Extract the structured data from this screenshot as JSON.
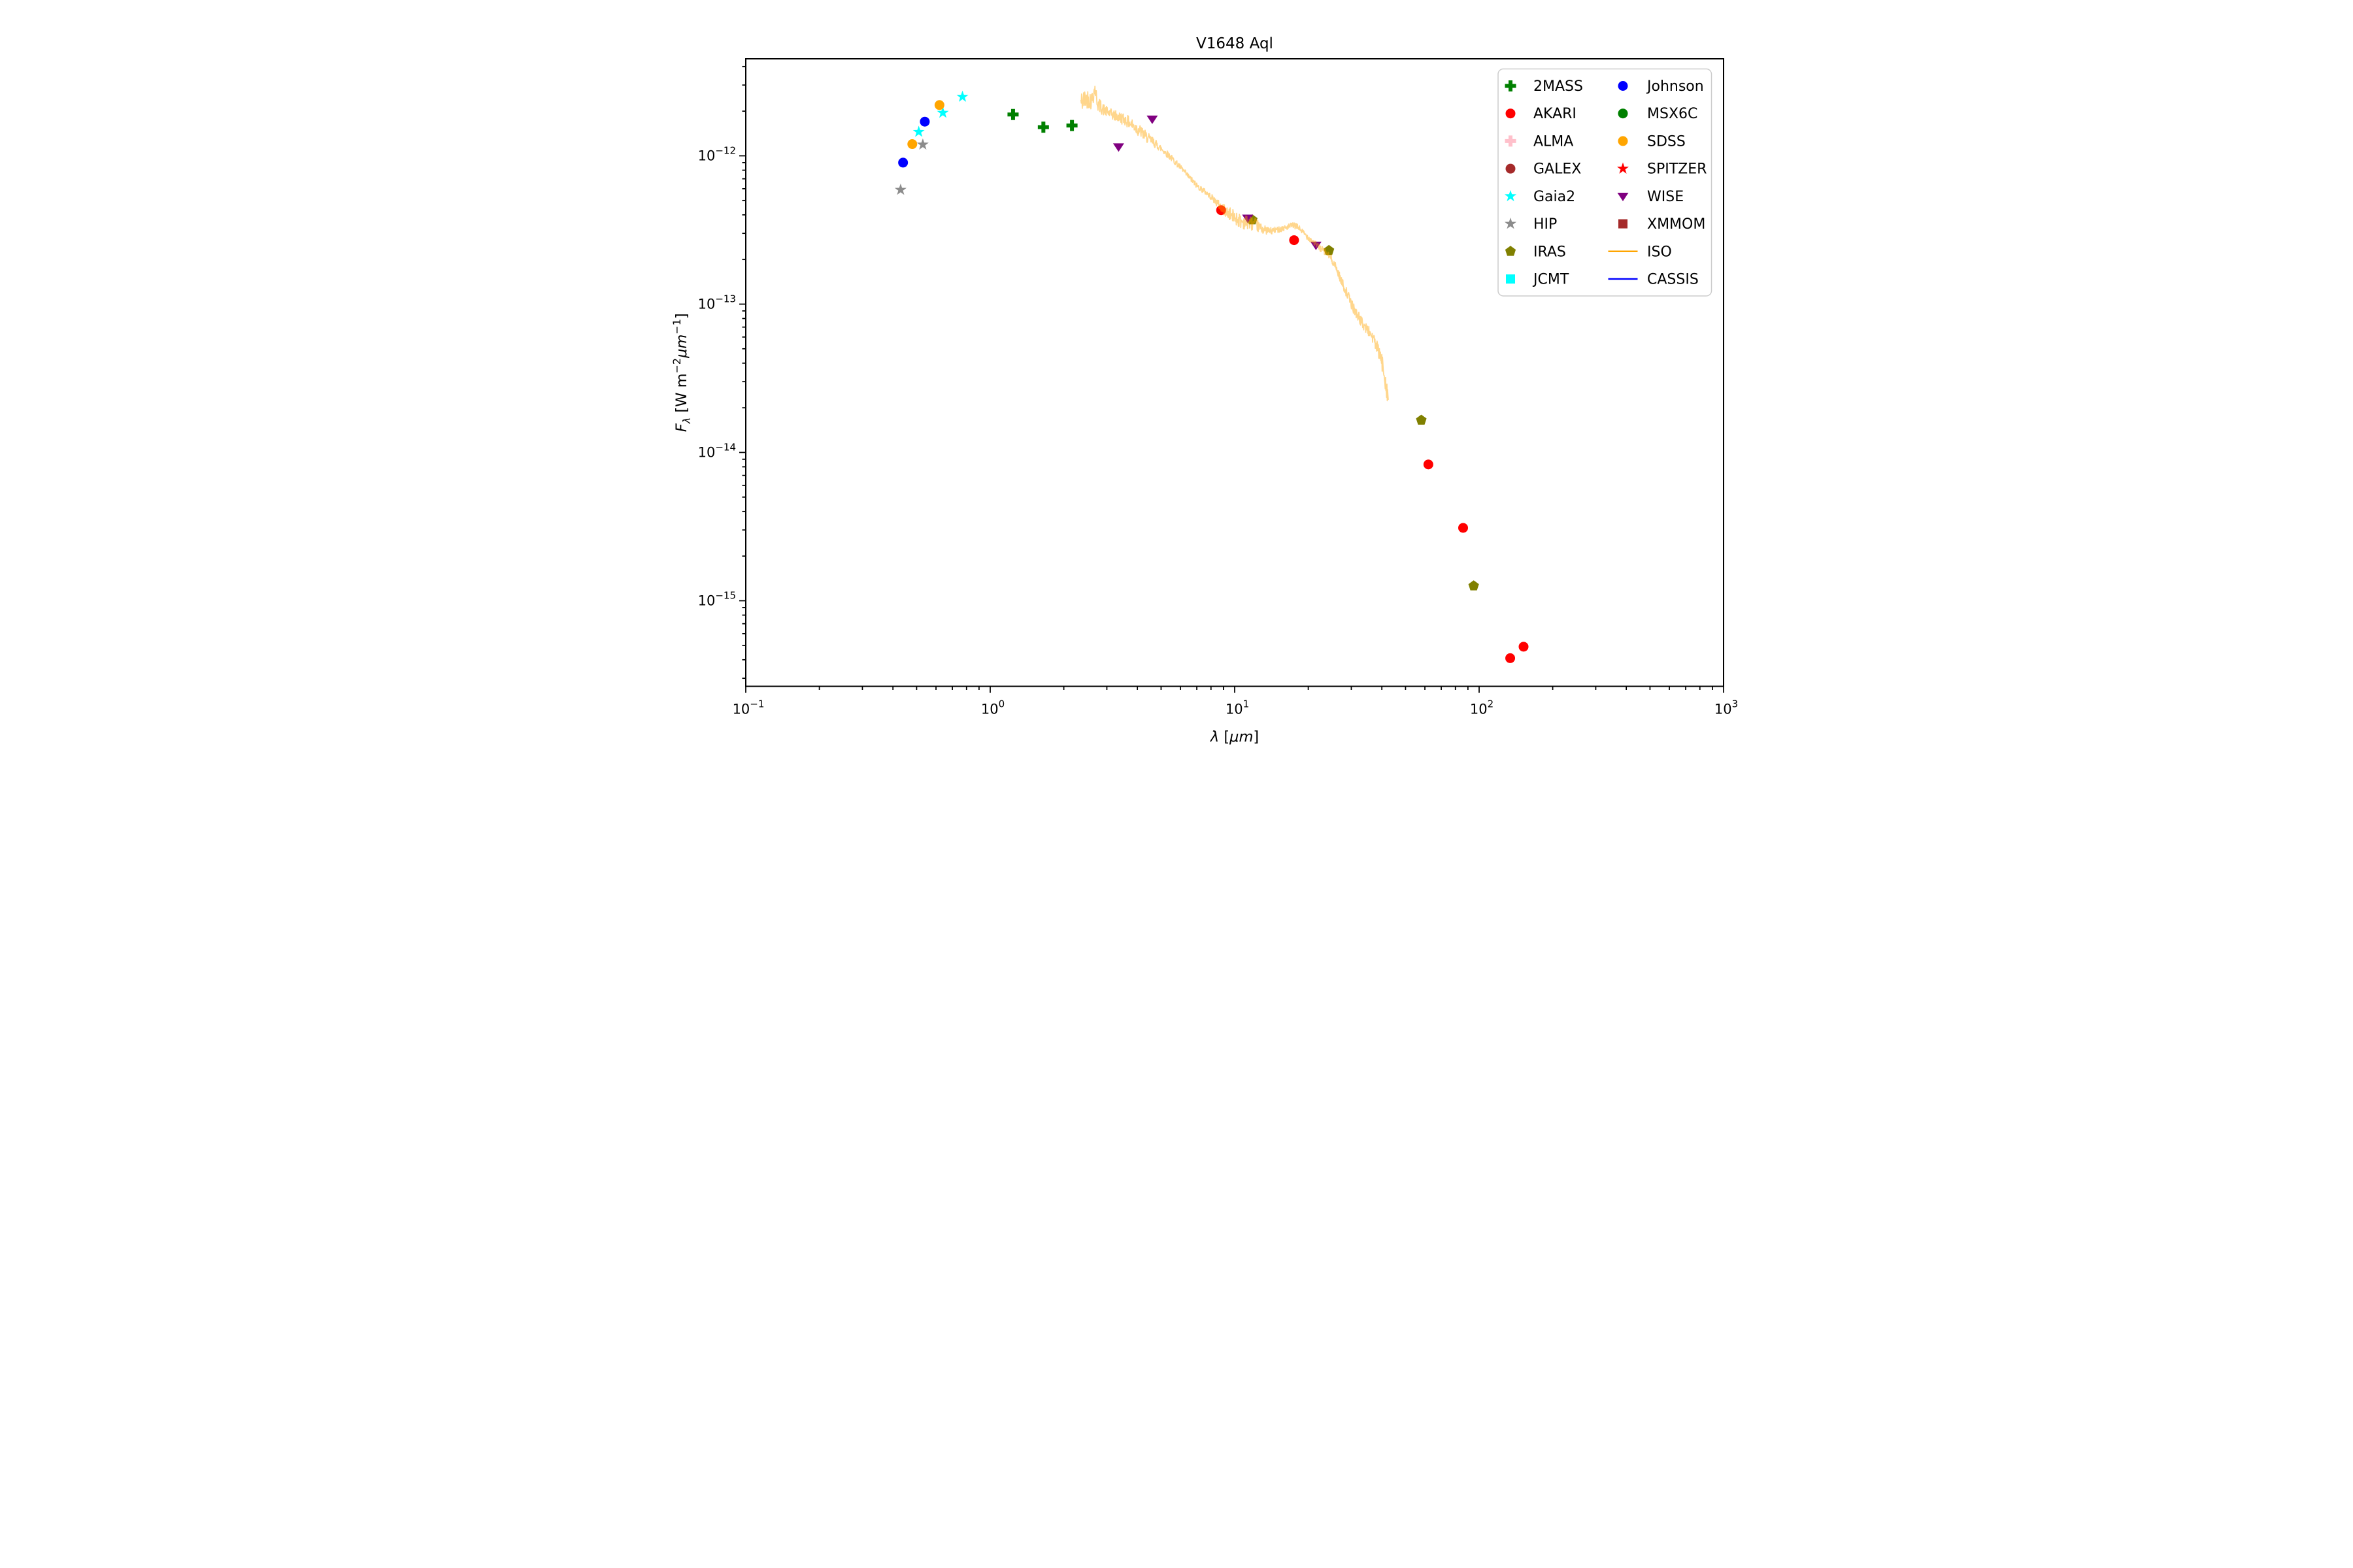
{
  "figure": {
    "title": "V1648 Aql",
    "xlabel": "λ [μm]",
    "ylabel": "Fλ [W m−2 μm−1]"
  },
  "chart_data": {
    "type": "scatter",
    "title": "V1648 Aql",
    "xlabel": "λ [μm]",
    "ylabel": "F_λ [W m^-2 μm^-1]",
    "x_scale": "log",
    "y_scale": "log",
    "xlim": [
      0.1,
      1000
    ],
    "ylim": [
      2.65e-16,
      4.5e-12
    ],
    "x_tick_exponents": [
      -1,
      0,
      1,
      2,
      3
    ],
    "x_tick_labels": [
      "10⁻¹",
      "10⁰",
      "10¹",
      "10²",
      "10³"
    ],
    "y_tick_exponents": [
      -12,
      -13,
      -14,
      -15
    ],
    "y_tick_labels": [
      "10⁻¹²",
      "10⁻¹³",
      "10⁻¹⁴",
      "10⁻¹⁵"
    ],
    "grid": false,
    "legend_position": "upper right",
    "legend_columns": 2,
    "series": [
      {
        "name": "2MASS",
        "marker": "plus",
        "color": "#008000",
        "points": [
          [
            1.24,
            1.9e-12
          ],
          [
            1.65,
            1.56e-12
          ],
          [
            2.16,
            1.6e-12
          ]
        ]
      },
      {
        "name": "AKARI",
        "marker": "circle",
        "color": "#FF0000",
        "points": [
          [
            8.8,
            4.3e-13
          ],
          [
            17.5,
            2.7e-13
          ],
          [
            62,
            8.3e-15
          ],
          [
            86,
            3.1e-15
          ],
          [
            134,
            4.1e-16
          ],
          [
            152,
            4.9e-16
          ]
        ]
      },
      {
        "name": "ALMA",
        "marker": "plus",
        "color": "#FFC0CB",
        "points": []
      },
      {
        "name": "GALEX",
        "marker": "circle",
        "color": "#A52A2A",
        "points": []
      },
      {
        "name": "Gaia2",
        "marker": "star",
        "color": "#00FFFF",
        "points": [
          [
            0.51,
            1.45e-12
          ],
          [
            0.64,
            1.95e-12
          ],
          [
            0.77,
            2.5e-12
          ]
        ]
      },
      {
        "name": "HIP",
        "marker": "star",
        "color": "#8C8C8C",
        "points": [
          [
            0.43,
            5.9e-13
          ],
          [
            0.53,
            1.19e-12
          ]
        ]
      },
      {
        "name": "IRAS",
        "marker": "pentagon",
        "color": "#808000",
        "points": [
          [
            11.8,
            3.7e-13
          ],
          [
            24.3,
            2.3e-13
          ],
          [
            58,
            1.65e-14
          ],
          [
            95,
            1.26e-15
          ]
        ]
      },
      {
        "name": "JCMT",
        "marker": "square",
        "color": "#00FFFF",
        "points": []
      },
      {
        "name": "Johnson",
        "marker": "circle",
        "color": "#0000FF",
        "points": [
          [
            0.44,
            9e-13
          ],
          [
            0.54,
            1.7e-12
          ]
        ]
      },
      {
        "name": "MSX6C",
        "marker": "circle",
        "color": "#008000",
        "points": []
      },
      {
        "name": "SDSS",
        "marker": "circle",
        "color": "#FFA500",
        "points": [
          [
            0.48,
            1.2e-12
          ],
          [
            0.62,
            2.2e-12
          ]
        ]
      },
      {
        "name": "SPITZER",
        "marker": "star",
        "color": "#FF0000",
        "points": []
      },
      {
        "name": "WISE",
        "marker": "triangle-down",
        "color": "#800080",
        "points": [
          [
            3.35,
            1.15e-12
          ],
          [
            4.6,
            1.77e-12
          ],
          [
            11.3,
            3.8e-13
          ],
          [
            21.5,
            2.5e-13
          ]
        ]
      },
      {
        "name": "XMMOM",
        "marker": "square",
        "color": "#A52A2A",
        "points": []
      },
      {
        "name": "ISO",
        "marker": "line",
        "color": "#FFA500",
        "points": []
      },
      {
        "name": "CASSIS",
        "marker": "line",
        "color": "#0000FF",
        "points": []
      }
    ],
    "iso_spectrum": {
      "name": "ISO",
      "color": "#FFA500",
      "opacity": 0.45,
      "stroke_width": 3.5,
      "anchors": [
        [
          2.35,
          2.3e-12
        ],
        [
          2.5,
          2.45e-12
        ],
        [
          2.6,
          2.35e-12
        ],
        [
          2.68,
          2.85e-12
        ],
        [
          2.75,
          2.25e-12
        ],
        [
          2.9,
          2.05e-12
        ],
        [
          3.1,
          1.92e-12
        ],
        [
          3.3,
          1.84e-12
        ],
        [
          3.55,
          1.76e-12
        ],
        [
          3.8,
          1.62e-12
        ],
        [
          4.1,
          1.47e-12
        ],
        [
          4.4,
          1.32e-12
        ],
        [
          4.7,
          1.22e-12
        ],
        [
          5.0,
          1.12e-12
        ],
        [
          5.4,
          1e-12
        ],
        [
          5.9,
          8.6e-13
        ],
        [
          6.4,
          7.4e-13
        ],
        [
          7.0,
          6.3e-13
        ],
        [
          7.6,
          5.7e-13
        ],
        [
          8.2,
          5.1e-13
        ],
        [
          8.8,
          4.5e-13
        ],
        [
          9.4,
          4.1e-13
        ],
        [
          10.0,
          3.85e-13
        ],
        [
          10.7,
          3.6e-13
        ],
        [
          11.4,
          3.55e-13
        ],
        [
          12.1,
          3.45e-13
        ],
        [
          13.0,
          3.2e-13
        ],
        [
          14.0,
          3.1e-13
        ],
        [
          15.2,
          3.2e-13
        ],
        [
          16.4,
          3.3e-13
        ],
        [
          17.3,
          3.4e-13
        ],
        [
          18.2,
          3.3e-13
        ],
        [
          19.2,
          3e-13
        ],
        [
          20.3,
          2.75e-13
        ],
        [
          21.4,
          2.55e-13
        ],
        [
          22.6,
          2.35e-13
        ],
        [
          23.8,
          2.2e-13
        ],
        [
          25.0,
          2e-13
        ],
        [
          26.2,
          1.7e-13
        ],
        [
          27.5,
          1.4e-13
        ],
        [
          29.0,
          1.15e-13
        ],
        [
          30.5,
          9.5e-14
        ],
        [
          32.0,
          8.3e-14
        ],
        [
          33.5,
          7.3e-14
        ],
        [
          35.0,
          6.7e-14
        ],
        [
          36.5,
          6.1e-14
        ],
        [
          38.0,
          5.2e-14
        ],
        [
          39.5,
          4.4e-14
        ],
        [
          40.7,
          3.6e-14
        ],
        [
          41.7,
          2.8e-14
        ],
        [
          42.5,
          2.3e-14
        ]
      ],
      "noise_dex_anchors": [
        [
          2.35,
          0.075
        ],
        [
          2.6,
          0.06
        ],
        [
          3.0,
          0.035
        ],
        [
          3.5,
          0.04
        ],
        [
          4.0,
          0.045
        ],
        [
          4.5,
          0.035
        ],
        [
          5.0,
          0.025
        ],
        [
          6.0,
          0.02
        ],
        [
          8.0,
          0.02
        ],
        [
          9.5,
          0.045
        ],
        [
          10.5,
          0.05
        ],
        [
          12.0,
          0.045
        ],
        [
          13.0,
          0.03
        ],
        [
          15.0,
          0.02
        ],
        [
          18.0,
          0.02
        ],
        [
          21.0,
          0.02
        ],
        [
          24.0,
          0.025
        ],
        [
          27.0,
          0.03
        ],
        [
          30.0,
          0.035
        ],
        [
          33.0,
          0.035
        ],
        [
          36.0,
          0.04
        ],
        [
          39.0,
          0.05
        ],
        [
          41.0,
          0.065
        ],
        [
          42.5,
          0.07
        ]
      ]
    },
    "legend_entries_column1": [
      "2MASS",
      "AKARI",
      "ALMA",
      "GALEX",
      "Gaia2",
      "HIP",
      "IRAS",
      "JCMT"
    ],
    "legend_entries_column2": [
      "Johnson",
      "MSX6C",
      "SDSS",
      "SPITZER",
      "WISE",
      "XMMOM",
      "ISO",
      "CASSIS"
    ]
  }
}
